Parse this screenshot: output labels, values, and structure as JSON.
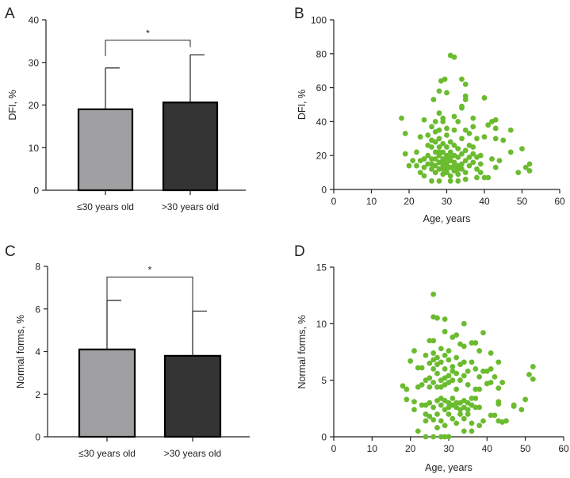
{
  "colors": {
    "bar_light": "#a0a0a2",
    "bar_dark": "#333433",
    "point": "#6bbb2f",
    "axis": "#231f20"
  },
  "chart_data": [
    {
      "panel": "A",
      "type": "bar",
      "title": "",
      "xlabel": "",
      "ylabel": "DFI, %",
      "ylim": [
        0,
        40
      ],
      "yticks": [
        0,
        10,
        20,
        30,
        40
      ],
      "categories": [
        "≤30 years old",
        ">30 years old"
      ],
      "values": [
        19.0,
        20.6
      ],
      "errors": [
        9.7,
        11.2
      ],
      "bar_colors": [
        "#a0a0a2",
        "#333433"
      ],
      "significance": {
        "label": "*",
        "level": 35.2,
        "legs": [
          31.5,
          33.6
        ]
      }
    },
    {
      "panel": "B",
      "type": "scatter",
      "xlabel": "Age, years",
      "ylabel": "DFI, %",
      "xlim": [
        0,
        60
      ],
      "ylim": [
        0,
        100
      ],
      "xticks": [
        0,
        10,
        20,
        30,
        40,
        50,
        60
      ],
      "yticks": [
        0,
        20,
        40,
        60,
        80,
        100
      ],
      "points": [
        [
          18,
          42
        ],
        [
          19,
          33
        ],
        [
          19,
          21
        ],
        [
          24,
          41
        ],
        [
          26,
          37
        ],
        [
          26.5,
          53
        ],
        [
          27,
          34
        ],
        [
          28,
          58
        ],
        [
          28,
          45
        ],
        [
          28.5,
          64
        ],
        [
          29.5,
          65
        ],
        [
          30,
          57
        ],
        [
          31,
          79
        ],
        [
          32,
          78
        ],
        [
          34,
          65
        ],
        [
          35,
          62
        ],
        [
          35,
          53
        ],
        [
          35,
          55
        ],
        [
          34,
          49
        ],
        [
          34,
          48
        ],
        [
          33,
          40
        ],
        [
          37,
          42
        ],
        [
          37,
          37
        ],
        [
          40,
          54
        ],
        [
          43,
          41
        ],
        [
          42,
          40
        ],
        [
          41,
          38
        ],
        [
          43,
          36
        ],
        [
          47,
          35
        ],
        [
          45,
          29
        ],
        [
          47,
          22
        ],
        [
          50,
          24
        ],
        [
          49,
          10
        ],
        [
          51,
          13
        ],
        [
          52,
          15
        ],
        [
          52,
          11
        ],
        [
          44,
          17
        ],
        [
          43,
          30
        ],
        [
          32,
          43
        ],
        [
          29,
          42
        ],
        [
          29,
          40
        ],
        [
          27,
          40
        ],
        [
          25,
          32
        ],
        [
          23,
          31
        ],
        [
          22,
          22
        ],
        [
          20,
          14
        ],
        [
          21,
          17
        ],
        [
          23,
          10
        ],
        [
          24,
          8
        ],
        [
          26,
          5
        ],
        [
          28,
          5
        ],
        [
          31,
          5
        ],
        [
          33,
          5
        ],
        [
          35,
          6
        ],
        [
          38,
          7
        ],
        [
          40,
          7
        ],
        [
          41,
          7
        ],
        [
          39,
          10
        ],
        [
          43,
          13
        ],
        [
          42,
          18
        ],
        [
          36,
          26
        ],
        [
          38,
          30
        ],
        [
          40,
          31
        ],
        [
          37,
          25
        ],
        [
          25,
          20
        ],
        [
          25,
          15
        ],
        [
          26,
          12
        ],
        [
          26,
          18
        ],
        [
          26,
          25
        ],
        [
          27,
          14
        ],
        [
          27,
          22
        ],
        [
          27,
          28
        ],
        [
          27,
          10
        ],
        [
          28,
          16
        ],
        [
          28,
          20
        ],
        [
          28,
          12
        ],
        [
          28,
          25
        ],
        [
          28,
          30
        ],
        [
          29,
          14
        ],
        [
          29,
          18
        ],
        [
          29,
          22
        ],
        [
          29,
          9
        ],
        [
          29,
          27
        ],
        [
          30,
          15
        ],
        [
          30,
          20
        ],
        [
          30,
          12
        ],
        [
          30,
          25
        ],
        [
          30,
          32
        ],
        [
          31,
          17
        ],
        [
          31,
          13
        ],
        [
          31,
          22
        ],
        [
          31,
          28
        ],
        [
          31,
          8
        ],
        [
          32,
          16
        ],
        [
          32,
          20
        ],
        [
          32,
          11
        ],
        [
          32,
          26
        ],
        [
          33,
          14
        ],
        [
          33,
          19
        ],
        [
          33,
          24
        ],
        [
          33,
          9
        ],
        [
          34,
          15
        ],
        [
          34,
          21
        ],
        [
          34,
          12
        ],
        [
          34,
          30
        ],
        [
          35,
          17
        ],
        [
          35,
          23
        ],
        [
          35,
          10
        ],
        [
          36,
          14
        ],
        [
          36,
          19
        ],
        [
          37,
          16
        ],
        [
          37,
          21
        ],
        [
          38,
          12
        ],
        [
          38,
          19
        ],
        [
          39,
          15
        ],
        [
          39,
          20
        ],
        [
          24,
          18
        ],
        [
          24,
          13
        ],
        [
          25,
          26
        ],
        [
          26,
          29
        ],
        [
          23,
          17
        ],
        [
          22,
          14
        ],
        [
          36,
          33
        ],
        [
          35,
          35
        ],
        [
          32,
          35
        ],
        [
          30,
          36
        ],
        [
          28,
          35
        ],
        [
          27,
          18
        ],
        [
          29,
          16
        ],
        [
          30,
          18
        ],
        [
          31,
          19
        ],
        [
          28,
          22
        ],
        [
          30,
          10
        ],
        [
          32,
          14
        ],
        [
          26,
          15
        ],
        [
          33,
          12
        ],
        [
          29,
          12
        ]
      ]
    },
    {
      "panel": "C",
      "type": "bar",
      "title": "",
      "xlabel": "",
      "ylabel": "Normal forms, %",
      "ylim": [
        0,
        8
      ],
      "yticks": [
        0,
        2,
        4,
        6,
        8
      ],
      "categories": [
        "≤30 years old",
        ">30 years old"
      ],
      "values": [
        4.1,
        3.8
      ],
      "errors": [
        2.3,
        2.1
      ],
      "bar_colors": [
        "#a0a0a2",
        "#333433"
      ],
      "significance": {
        "label": "*",
        "level": 7.5,
        "legs": [
          4.1,
          3.8
        ]
      }
    },
    {
      "panel": "D",
      "type": "scatter",
      "xlabel": "Age, years",
      "ylabel": "Normal forms, %",
      "xlim": [
        0,
        60
      ],
      "ylim": [
        0,
        15
      ],
      "xticks": [
        0,
        10,
        20,
        30,
        40,
        50,
        60
      ],
      "yticks": [
        0,
        5,
        10,
        15
      ],
      "points": [
        [
          26,
          12.6
        ],
        [
          26,
          10.6
        ],
        [
          27,
          10.5
        ],
        [
          29,
          10.4
        ],
        [
          34,
          10
        ],
        [
          39,
          9.2
        ],
        [
          29,
          9.3
        ],
        [
          31,
          8.8
        ],
        [
          32,
          9
        ],
        [
          26,
          8.5
        ],
        [
          25,
          8.5
        ],
        [
          33,
          8.2
        ],
        [
          34,
          8
        ],
        [
          36,
          8.3
        ],
        [
          37,
          8.3
        ],
        [
          38,
          7.6
        ],
        [
          41,
          7.4
        ],
        [
          21,
          7.6
        ],
        [
          20,
          6.7
        ],
        [
          22,
          6.1
        ],
        [
          23,
          6.1
        ],
        [
          18,
          4.5
        ],
        [
          19,
          4.2
        ],
        [
          19,
          3.3
        ],
        [
          21,
          3.1
        ],
        [
          21,
          2.4
        ],
        [
          22,
          0.5
        ],
        [
          24,
          0
        ],
        [
          26,
          0
        ],
        [
          28,
          0
        ],
        [
          29,
          0
        ],
        [
          30,
          0
        ],
        [
          52,
          6.2
        ],
        [
          51,
          5.5
        ],
        [
          52,
          5.1
        ],
        [
          50,
          3.3
        ],
        [
          49,
          2.4
        ],
        [
          47,
          2.8
        ],
        [
          47,
          2.7
        ],
        [
          44,
          1.3
        ],
        [
          45,
          1.4
        ],
        [
          43,
          1.4
        ],
        [
          44,
          4.8
        ],
        [
          43,
          4.3
        ],
        [
          43,
          6.6
        ],
        [
          43,
          3.1
        ],
        [
          43,
          2.9
        ],
        [
          42,
          5.3
        ],
        [
          41,
          6
        ],
        [
          40,
          5.8
        ],
        [
          39,
          5.8
        ],
        [
          40,
          4.7
        ],
        [
          41,
          4.8
        ],
        [
          42,
          1.9
        ],
        [
          41,
          1.9
        ],
        [
          39,
          1.4
        ],
        [
          38,
          1
        ],
        [
          36,
          0.5
        ],
        [
          34,
          0.5
        ],
        [
          24,
          7.2
        ],
        [
          24,
          5
        ],
        [
          24,
          2.8
        ],
        [
          24,
          1.4
        ],
        [
          25,
          6.5
        ],
        [
          25,
          5.2
        ],
        [
          25,
          3
        ],
        [
          25,
          1.8
        ],
        [
          26,
          7.4
        ],
        [
          26,
          6
        ],
        [
          26,
          4.8
        ],
        [
          26,
          2.6
        ],
        [
          26,
          1.5
        ],
        [
          27,
          7
        ],
        [
          27,
          5.6
        ],
        [
          27,
          4.4
        ],
        [
          27,
          3.2
        ],
        [
          27,
          2
        ],
        [
          27,
          0.8
        ],
        [
          28,
          6.6
        ],
        [
          28,
          5
        ],
        [
          28,
          2.8
        ],
        [
          28,
          1.4
        ],
        [
          28,
          7.8
        ],
        [
          29,
          7.2
        ],
        [
          29,
          6
        ],
        [
          29,
          4.6
        ],
        [
          29,
          2.4
        ],
        [
          29,
          1
        ],
        [
          30,
          6.8
        ],
        [
          30,
          5.4
        ],
        [
          30,
          3
        ],
        [
          30,
          2
        ],
        [
          30,
          7.6
        ],
        [
          31,
          6.2
        ],
        [
          31,
          5
        ],
        [
          31,
          2.8
        ],
        [
          31,
          1.6
        ],
        [
          32,
          7
        ],
        [
          32,
          5.6
        ],
        [
          32,
          4.2
        ],
        [
          32,
          2.6
        ],
        [
          32,
          1.2
        ],
        [
          33,
          6.4
        ],
        [
          33,
          5
        ],
        [
          33,
          3
        ],
        [
          33,
          2
        ],
        [
          34,
          6.6
        ],
        [
          34,
          5.4
        ],
        [
          34,
          2.6
        ],
        [
          34,
          1.6
        ],
        [
          35,
          5.8
        ],
        [
          35,
          4.6
        ],
        [
          35,
          3
        ],
        [
          35,
          2
        ],
        [
          36,
          6.6
        ],
        [
          36,
          2.8
        ],
        [
          36,
          1.2
        ],
        [
          37,
          6
        ],
        [
          37,
          4.2
        ],
        [
          37,
          2.6
        ],
        [
          37,
          3.4
        ],
        [
          38,
          5.3
        ],
        [
          38,
          2.6
        ],
        [
          38,
          4.2
        ],
        [
          23,
          4.6
        ],
        [
          22,
          4.4
        ],
        [
          23,
          2.8
        ],
        [
          24,
          2
        ],
        [
          25,
          4.4
        ],
        [
          28,
          3.4
        ],
        [
          29,
          3.2
        ],
        [
          30,
          2.6
        ],
        [
          31,
          3.4
        ],
        [
          32,
          3
        ],
        [
          33,
          2.4
        ],
        [
          34,
          3.2
        ],
        [
          35,
          2.4
        ],
        [
          36,
          3.4
        ],
        [
          28,
          4.4
        ],
        [
          30,
          4.8
        ],
        [
          31,
          5.8
        ],
        [
          29,
          5.2
        ],
        [
          27,
          6.4
        ],
        [
          26,
          6.8
        ]
      ]
    }
  ]
}
